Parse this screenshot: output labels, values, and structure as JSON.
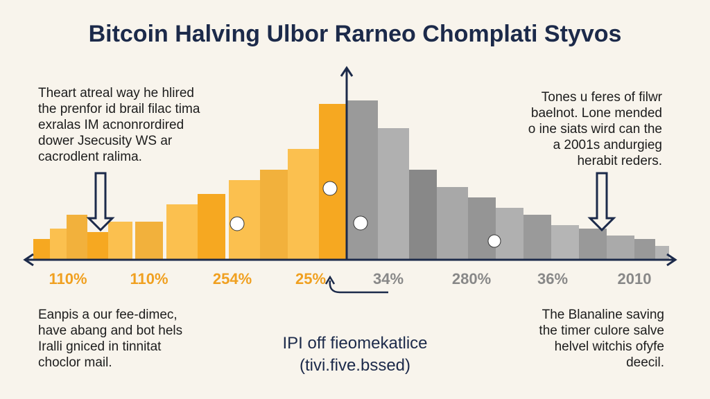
{
  "title": "Bitcoin Halving Ulbor Rarneo Chomplati Styvos",
  "top_left_note": [
    "Theart atreal way he hlired",
    "the prenfor id brail filac tima",
    "exralas IM acnonrordired",
    "dower Jsecusity WS ar",
    "cacrodlent ralima."
  ],
  "top_right_note": [
    "Tones u feres of filwr",
    "baelnot. Lone mended",
    "o ine siats wird can the",
    "a 2001s andurgieg",
    "herabit reders."
  ],
  "axis_labels": [
    "110%",
    "110%",
    "254%",
    "25%",
    "34%",
    "280%",
    "36%",
    "2010"
  ],
  "bottom_left_note": [
    "Eanpis a our fee-dimec,",
    "have abang and bot hels",
    "Iralli gniced in tinnitat",
    "choclor mail."
  ],
  "center_caption": [
    "IPI off fieomekatlice",
    "(tivi.five.bssed)"
  ],
  "bottom_right_note": [
    "The Blanaline saving",
    "the timer culore salve",
    "helvel witchis ofyfe",
    "deecil."
  ]
}
